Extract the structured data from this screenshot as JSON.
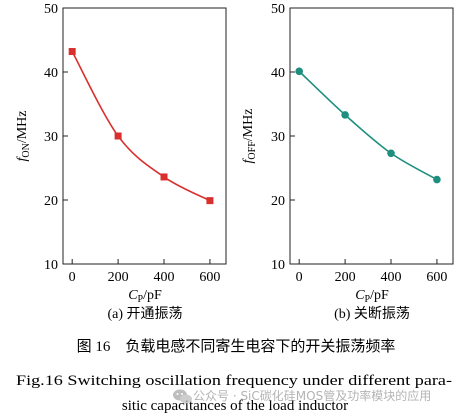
{
  "chart_data": [
    {
      "type": "line",
      "xlabel": "C_P/pF",
      "ylabel": "f_ON/MHz",
      "xlabel_parts": {
        "main": "C",
        "sub": "P",
        "unit": "/pF"
      },
      "ylabel_parts": {
        "main": "f",
        "sub": "ON",
        "unit": "/MHz"
      },
      "caption": "(a) 开通振荡",
      "x": [
        0,
        200,
        400,
        600
      ],
      "xticks": [
        "0",
        "200",
        "400",
        "600"
      ],
      "xlim": [
        -40,
        670
      ],
      "series": [
        {
          "values": [
            43.2,
            30.0,
            23.6,
            19.9
          ],
          "color": "#d9302e",
          "marker": "square"
        }
      ],
      "yticks": [
        "10",
        "20",
        "30",
        "40",
        "50"
      ],
      "ylim": [
        10,
        50
      ],
      "grid": false
    },
    {
      "type": "line",
      "xlabel": "C_P/pF",
      "ylabel": "f_OFF/MHz",
      "xlabel_parts": {
        "main": "C",
        "sub": "P",
        "unit": "/pF"
      },
      "ylabel_parts": {
        "main": "f",
        "sub": "OFF",
        "unit": "/MHz"
      },
      "caption": "(b) 关断振荡",
      "x": [
        0,
        200,
        400,
        600
      ],
      "xticks": [
        "0",
        "200",
        "400",
        "600"
      ],
      "xlim": [
        -40,
        670
      ],
      "series": [
        {
          "values": [
            40.1,
            33.3,
            27.3,
            23.2
          ],
          "color": "#1e8f7e",
          "marker": "circle"
        }
      ],
      "yticks": [
        "10",
        "20",
        "30",
        "40",
        "50"
      ],
      "ylim": [
        10,
        50
      ],
      "grid": false
    }
  ],
  "figure": {
    "caption_cn": "图 16　负载电感不同寄生电容下的开关振荡频率",
    "caption_en_line1": "Fig.16    Switching oscillation frequency under different para-",
    "caption_en_line2": "sitic capacitances of the load inductor"
  },
  "watermark": {
    "text": "公众号 · SiC碳化硅MOS管及功率模块的应用",
    "icon": "wechat-icon"
  }
}
